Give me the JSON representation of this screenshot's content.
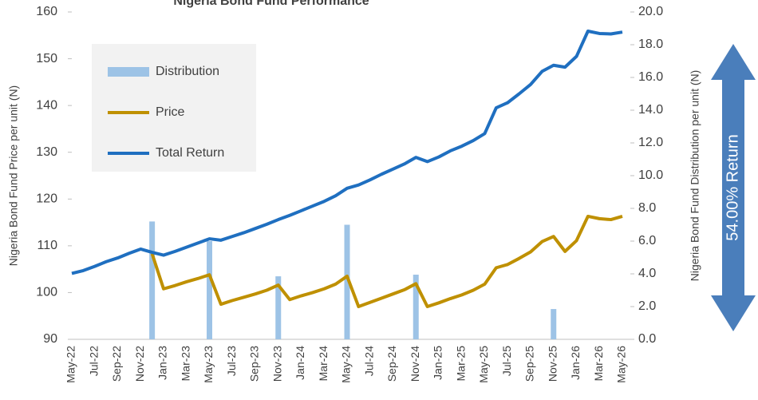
{
  "chart_data": {
    "type": "combo",
    "title": "Nigeria Bond Fund Performance",
    "ylabel": "Nigeria Bond Fund Price per unit (N)",
    "y2label": "Nigeria Bond Fund Distribution per unit (N)",
    "annotation": "54.00% Return",
    "categories": [
      "May-22",
      null,
      "Jul-22",
      null,
      "Sep-22",
      null,
      "Nov-22",
      null,
      "Jan-23",
      null,
      "Mar-23",
      null,
      "May-23",
      null,
      "Jul-23",
      null,
      "Sep-23",
      null,
      "Nov-23",
      null,
      "Jan-24",
      null,
      "Mar-24",
      null,
      "May-24",
      null,
      "Jul-24",
      null,
      "Sep-24",
      null,
      "Nov-24",
      null,
      "Jan-25",
      null,
      "Mar-25",
      null,
      "May-25",
      null,
      "Jul-25",
      null,
      "Sep-25",
      null,
      "Nov-25",
      null,
      "Jan-26",
      null,
      "Mar-26",
      null,
      "May-26"
    ],
    "ylim": [
      90,
      160
    ],
    "yticks": [
      90,
      100,
      110,
      120,
      130,
      140,
      150,
      160
    ],
    "y2lim": [
      0,
      20
    ],
    "y2ticks": [
      {
        "value": 0,
        "label": "0.0"
      },
      {
        "value": 2,
        "label": "2.0"
      },
      {
        "value": 4,
        "label": "4.0"
      },
      {
        "value": 6,
        "label": "6.0"
      },
      {
        "value": 8,
        "label": "8.0"
      },
      {
        "value": 10,
        "label": "10.0"
      },
      {
        "value": 12,
        "label": "12.0"
      },
      {
        "value": 14,
        "label": "14.0"
      },
      {
        "value": 16,
        "label": "16.0"
      },
      {
        "value": 18,
        "label": "18.0"
      },
      {
        "value": 20,
        "label": "20.0"
      }
    ],
    "series": [
      {
        "name": "Distribution",
        "type": "bar",
        "axis": "y2",
        "color": "#9dc3e6",
        "values": [
          null,
          null,
          null,
          null,
          null,
          null,
          null,
          7.2,
          null,
          null,
          null,
          null,
          6.0,
          null,
          null,
          null,
          null,
          null,
          3.85,
          null,
          null,
          null,
          null,
          null,
          7.0,
          null,
          null,
          null,
          null,
          null,
          3.95,
          null,
          null,
          null,
          null,
          null,
          null,
          null,
          null,
          null,
          null,
          null,
          1.85,
          null,
          null,
          null,
          null,
          null,
          null
        ]
      },
      {
        "name": "Price",
        "type": "line",
        "color": "#bf9000",
        "values": [
          null,
          null,
          null,
          null,
          null,
          null,
          null,
          108.3,
          100.8,
          101.5,
          102.3,
          103.0,
          103.8,
          97.5,
          98.3,
          99.0,
          99.7,
          100.5,
          101.6,
          98.5,
          99.3,
          100.0,
          100.8,
          101.8,
          103.5,
          97.0,
          97.9,
          98.8,
          99.7,
          100.6,
          101.9,
          97.0,
          97.8,
          98.7,
          99.5,
          100.5,
          101.8,
          105.3,
          106.0,
          107.3,
          108.7,
          110.9,
          112.0,
          108.8,
          111.1,
          116.3,
          115.8,
          115.6,
          116.3
        ]
      },
      {
        "name": "Total Return",
        "type": "line",
        "color": "#1f6fc0",
        "values": [
          104.1,
          104.7,
          105.6,
          106.6,
          107.4,
          108.4,
          109.3,
          108.6,
          108.0,
          108.8,
          109.7,
          110.6,
          111.5,
          111.2,
          112.0,
          112.8,
          113.7,
          114.6,
          115.6,
          116.5,
          117.5,
          118.5,
          119.5,
          120.7,
          122.3,
          123.0,
          124.1,
          125.3,
          126.4,
          127.5,
          128.9,
          128.0,
          129.0,
          130.3,
          131.3,
          132.5,
          134.0,
          139.5,
          140.6,
          142.5,
          144.5,
          147.3,
          148.6,
          148.2,
          150.5,
          155.9,
          155.4,
          155.3,
          155.7
        ]
      }
    ]
  }
}
